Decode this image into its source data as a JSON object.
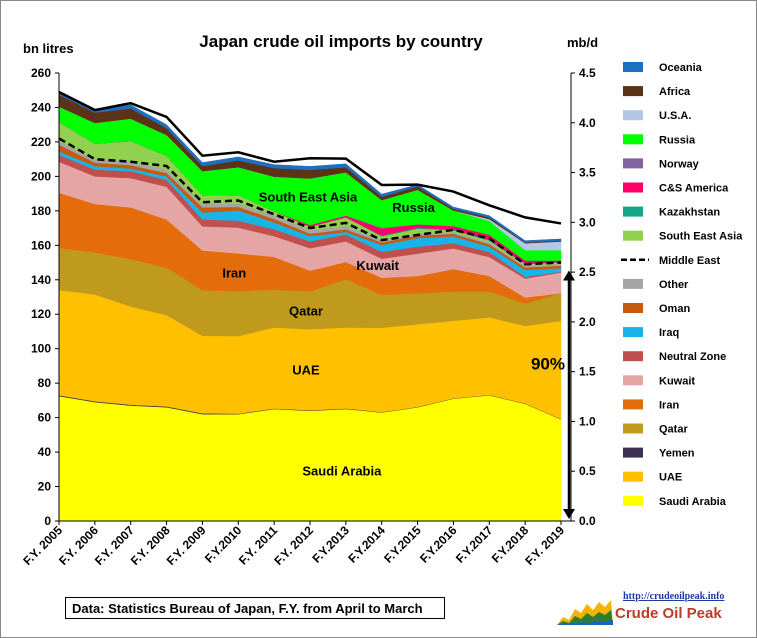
{
  "chart_data": {
    "type": "area",
    "title": "Japan crude oil imports by country",
    "ylabel_left": "bn litres",
    "ylabel_right": "mb/d",
    "ylim_left": [
      0,
      260
    ],
    "yticks_left": [
      "0",
      "20",
      "40",
      "60",
      "80",
      "100",
      "120",
      "140",
      "160",
      "180",
      "200",
      "220",
      "240",
      "260"
    ],
    "ylim_right": [
      0,
      4.5
    ],
    "yticks_right": [
      "0.0",
      "0.5",
      "1.0",
      "1.5",
      "2.0",
      "2.5",
      "3.0",
      "3.5",
      "4.0",
      "4.5"
    ],
    "categories": [
      "F.Y. 2005",
      "F.Y. 2006",
      "F.Y. 2007",
      "F.Y. 2008",
      "F.Y. 2009",
      "F.Y.2010",
      "F.Y. 2011",
      "F.Y. 2012",
      "F.Y.2013",
      "F.Y.2014",
      "F.Y.2015",
      "F.Y.2016",
      "F.Y.2017",
      "F.Y.2018",
      "F.Y. 2019"
    ],
    "stack_order_bottom_to_top": [
      "Saudi Arabia",
      "Yemen",
      "UAE",
      "Qatar",
      "Iran",
      "Kuwait",
      "Neutral Zone",
      "Iraq",
      "Oman",
      "Other",
      "South East Asia",
      "Kazakhstan",
      "C&S America",
      "Norway",
      "Russia",
      "U.S.A.",
      "Africa",
      "Oceania"
    ],
    "series": [
      {
        "name": "Saudi Arabia",
        "color": "#ffff00",
        "values": [
          72.5,
          69,
          67,
          66,
          62,
          62,
          65,
          64,
          65,
          63,
          66,
          71,
          73,
          68,
          59
        ]
      },
      {
        "name": "Yemen",
        "color": "#3f3151",
        "values": [
          0.5,
          0.5,
          0.5,
          0.5,
          0.5,
          0.3,
          0.3,
          0.3,
          0.3,
          0.2,
          0.2,
          0.2,
          0.2,
          0.2,
          0.2
        ]
      },
      {
        "name": "UAE",
        "color": "#ffc000",
        "values": [
          61,
          62,
          57,
          53,
          45,
          45,
          47,
          47,
          47,
          49,
          48,
          45,
          45,
          45,
          57
        ]
      },
      {
        "name": "Qatar",
        "color": "#c09a1d",
        "values": [
          24.5,
          24.5,
          27.5,
          27.5,
          26.5,
          26,
          22,
          22,
          28,
          19,
          18,
          17,
          15,
          13,
          16
        ]
      },
      {
        "name": "Iran",
        "color": "#e46c0a",
        "values": [
          32,
          28,
          30,
          28,
          23,
          22,
          19,
          12,
          10,
          10,
          10,
          13,
          9,
          3.5,
          0
        ]
      },
      {
        "name": "Kuwait",
        "color": "#e6a5a5",
        "values": [
          18,
          16,
          17,
          19,
          14,
          15,
          12,
          13,
          12,
          11,
          13,
          12,
          11,
          11,
          12
        ]
      },
      {
        "name": "Neutral Zone",
        "color": "#c0504d",
        "values": [
          4,
          4,
          4,
          4,
          4,
          4,
          4,
          4,
          4,
          4,
          4,
          3,
          3,
          1,
          0.5
        ]
      },
      {
        "name": "Iraq",
        "color": "#18b4e8",
        "values": [
          2,
          2,
          1.5,
          2,
          4,
          6,
          4,
          3,
          1.5,
          4,
          5,
          4,
          3,
          4,
          2
        ]
      },
      {
        "name": "Oman",
        "color": "#c55a11",
        "values": [
          4,
          2,
          2,
          2,
          3,
          2,
          2,
          1.5,
          1.5,
          1.5,
          1.5,
          1.5,
          1.5,
          1.5,
          1.5
        ]
      },
      {
        "name": "Other",
        "color": "#a5a5a5",
        "values": [
          2,
          2,
          2,
          2,
          2,
          2,
          2,
          2,
          2,
          1.5,
          1,
          1,
          1,
          1,
          1
        ]
      },
      {
        "name": "South East Asia",
        "color": "#92d050",
        "values": [
          11,
          9,
          12,
          8,
          5,
          5,
          2.5,
          2,
          5,
          2,
          3,
          1,
          1,
          1,
          1
        ]
      },
      {
        "name": "Kazakhstan",
        "color": "#17a589",
        "values": [
          0,
          0,
          0,
          0,
          0,
          0,
          0,
          0,
          0,
          0.5,
          0.5,
          0.5,
          0.5,
          0,
          0
        ]
      },
      {
        "name": "C&S America",
        "color": "#ff0066",
        "values": [
          0,
          0,
          0,
          0,
          0,
          0,
          0,
          1,
          1,
          4,
          2,
          2,
          3,
          2,
          1
        ]
      },
      {
        "name": "Norway",
        "color": "#8064a2",
        "values": [
          0,
          0,
          0,
          0,
          0,
          0,
          0,
          0,
          0,
          0.5,
          0,
          0,
          0,
          0,
          0
        ]
      },
      {
        "name": "Russia",
        "color": "#00ff00",
        "values": [
          9,
          12,
          13,
          12,
          14,
          16,
          20,
          27,
          25,
          16,
          20,
          9,
          8,
          6,
          6
        ]
      },
      {
        "name": "U.S.A.",
        "color": "#b4c7e7",
        "values": [
          0,
          0,
          0,
          0,
          0,
          0,
          0,
          0,
          0,
          0,
          0,
          0,
          1,
          4,
          5
        ]
      },
      {
        "name": "Africa",
        "color": "#5c3317",
        "values": [
          7,
          6,
          6,
          4,
          3,
          4,
          5,
          5,
          3,
          2,
          2,
          1,
          1,
          0.5,
          0.5
        ]
      },
      {
        "name": "Oceania",
        "color": "#1f6fc1",
        "values": [
          1.5,
          1.5,
          2,
          2,
          2,
          2,
          2,
          2,
          2,
          1.5,
          1,
          1,
          1,
          1,
          1
        ]
      }
    ],
    "total_line": {
      "name": "Total",
      "values": [
        249,
        238.5,
        242.5,
        234.5,
        212,
        214,
        208.5,
        210.5,
        210.3,
        195,
        195.2,
        191.2,
        183.2,
        176.2,
        172.7
      ]
    },
    "middle_east_line": {
      "name": "Middle East",
      "style": "dashed",
      "values": [
        222,
        210,
        208.5,
        206,
        185,
        186,
        178,
        170,
        173,
        163,
        166,
        169,
        164,
        149,
        150
      ]
    },
    "area_labels": [
      {
        "text": "Saudi Arabia",
        "series": "Saudi Arabia"
      },
      {
        "text": "UAE",
        "series": "UAE"
      },
      {
        "text": "Qatar",
        "series": "Qatar"
      },
      {
        "text": "Iran",
        "series": "Iran"
      },
      {
        "text": "Kuwait",
        "series": "Kuwait"
      },
      {
        "text": "South East Asia",
        "series": "South East Asia"
      },
      {
        "text": "Russia",
        "series": "Russia"
      }
    ],
    "annotation": {
      "text": "90%",
      "arrow": "double-headed vertical at F.Y. 2019, from 0 to Middle East total"
    },
    "legend": [
      {
        "label": "Oceania",
        "color": "#1f6fc1",
        "kind": "swatch"
      },
      {
        "label": "Africa",
        "color": "#5c3317",
        "kind": "swatch"
      },
      {
        "label": "U.S.A.",
        "color": "#b4c7e7",
        "kind": "swatch"
      },
      {
        "label": "Russia",
        "color": "#00ff00",
        "kind": "swatch"
      },
      {
        "label": "Norway",
        "color": "#8064a2",
        "kind": "swatch"
      },
      {
        "label": "C&S America",
        "color": "#ff0066",
        "kind": "swatch"
      },
      {
        "label": "Kazakhstan",
        "color": "#17a589",
        "kind": "swatch"
      },
      {
        "label": "South East Asia",
        "color": "#92d050",
        "kind": "swatch"
      },
      {
        "label": "Middle East",
        "color": "#000000",
        "kind": "dashed-line"
      },
      {
        "label": "Other",
        "color": "#a5a5a5",
        "kind": "swatch"
      },
      {
        "label": "Oman",
        "color": "#c55a11",
        "kind": "swatch"
      },
      {
        "label": "Iraq",
        "color": "#18b4e8",
        "kind": "swatch"
      },
      {
        "label": "Neutral Zone",
        "color": "#c0504d",
        "kind": "swatch"
      },
      {
        "label": "Kuwait",
        "color": "#e6a5a5",
        "kind": "swatch"
      },
      {
        "label": "Iran",
        "color": "#e46c0a",
        "kind": "swatch"
      },
      {
        "label": "Qatar",
        "color": "#c09a1d",
        "kind": "swatch"
      },
      {
        "label": "Yemen",
        "color": "#3f3151",
        "kind": "swatch"
      },
      {
        "label": "UAE",
        "color": "#ffc000",
        "kind": "swatch"
      },
      {
        "label": "Saudi Arabia",
        "color": "#ffff00",
        "kind": "swatch"
      }
    ]
  },
  "footer": {
    "source": "Data: Statistics Bureau of Japan, F.Y. from April to March",
    "logo_url": "http://crudeoilpeak.info",
    "logo_text": "Crude Oil Peak"
  }
}
